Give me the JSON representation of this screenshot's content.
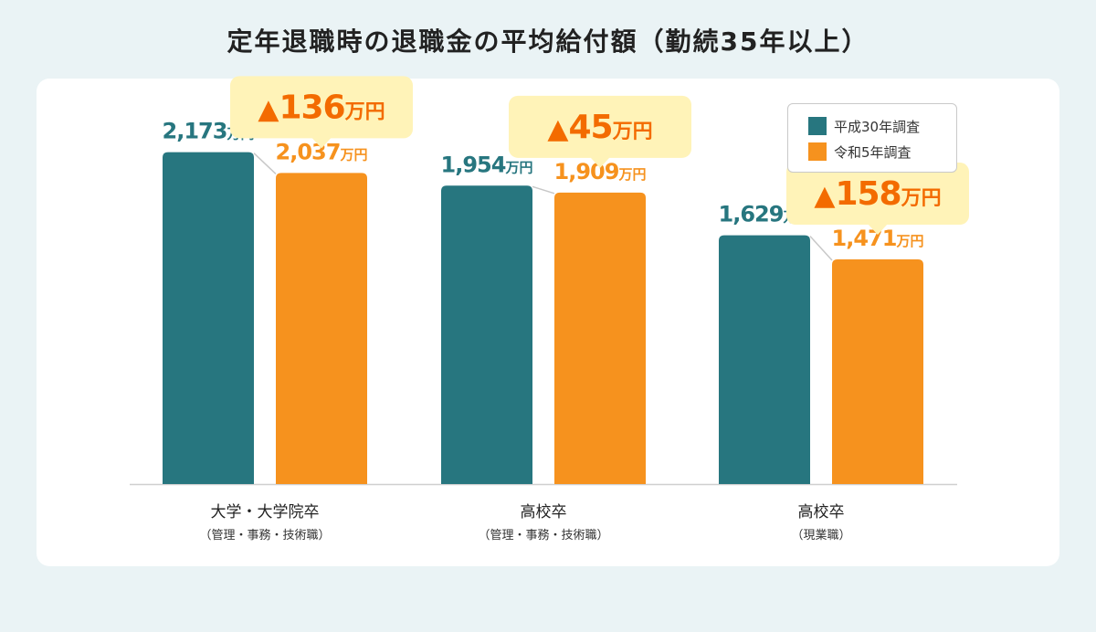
{
  "title": "定年退職時の退職金の平均給付額（勤続35年以上）",
  "colors": {
    "series1": "#27767f",
    "series2": "#f6921e",
    "callout_bg": "#fff3b8",
    "callout_text": "#f36b00",
    "axis": "#cfcfcf",
    "connector": "#c8c8c8"
  },
  "legend": {
    "items": [
      {
        "label": "平成30年調査"
      },
      {
        "label": "令和5年調査"
      }
    ]
  },
  "chart_data": {
    "type": "bar",
    "unit": "万円",
    "categories": [
      {
        "name": "大学・大学院卒",
        "sub": "（管理・事務・技術職）"
      },
      {
        "name": "高校卒",
        "sub": "（管理・事務・技術職）"
      },
      {
        "name": "高校卒",
        "sub": "（現業職）"
      }
    ],
    "series": [
      {
        "name": "平成30年調査",
        "values": [
          2173,
          1954,
          1629
        ],
        "labels": [
          "2,173",
          "1,954",
          "1,629"
        ]
      },
      {
        "name": "令和5年調査",
        "values": [
          2037,
          1909,
          1471
        ],
        "labels": [
          "2,037",
          "1,909",
          "1,471"
        ]
      }
    ],
    "differences": [
      {
        "symbol": "▲",
        "value": "136",
        "unit": "万円"
      },
      {
        "symbol": "▲",
        "value": "45",
        "unit": "万円"
      },
      {
        "symbol": "▲",
        "value": "158",
        "unit": "万円"
      }
    ],
    "ylim": [
      0,
      2500
    ],
    "legend_position": "top-right"
  }
}
